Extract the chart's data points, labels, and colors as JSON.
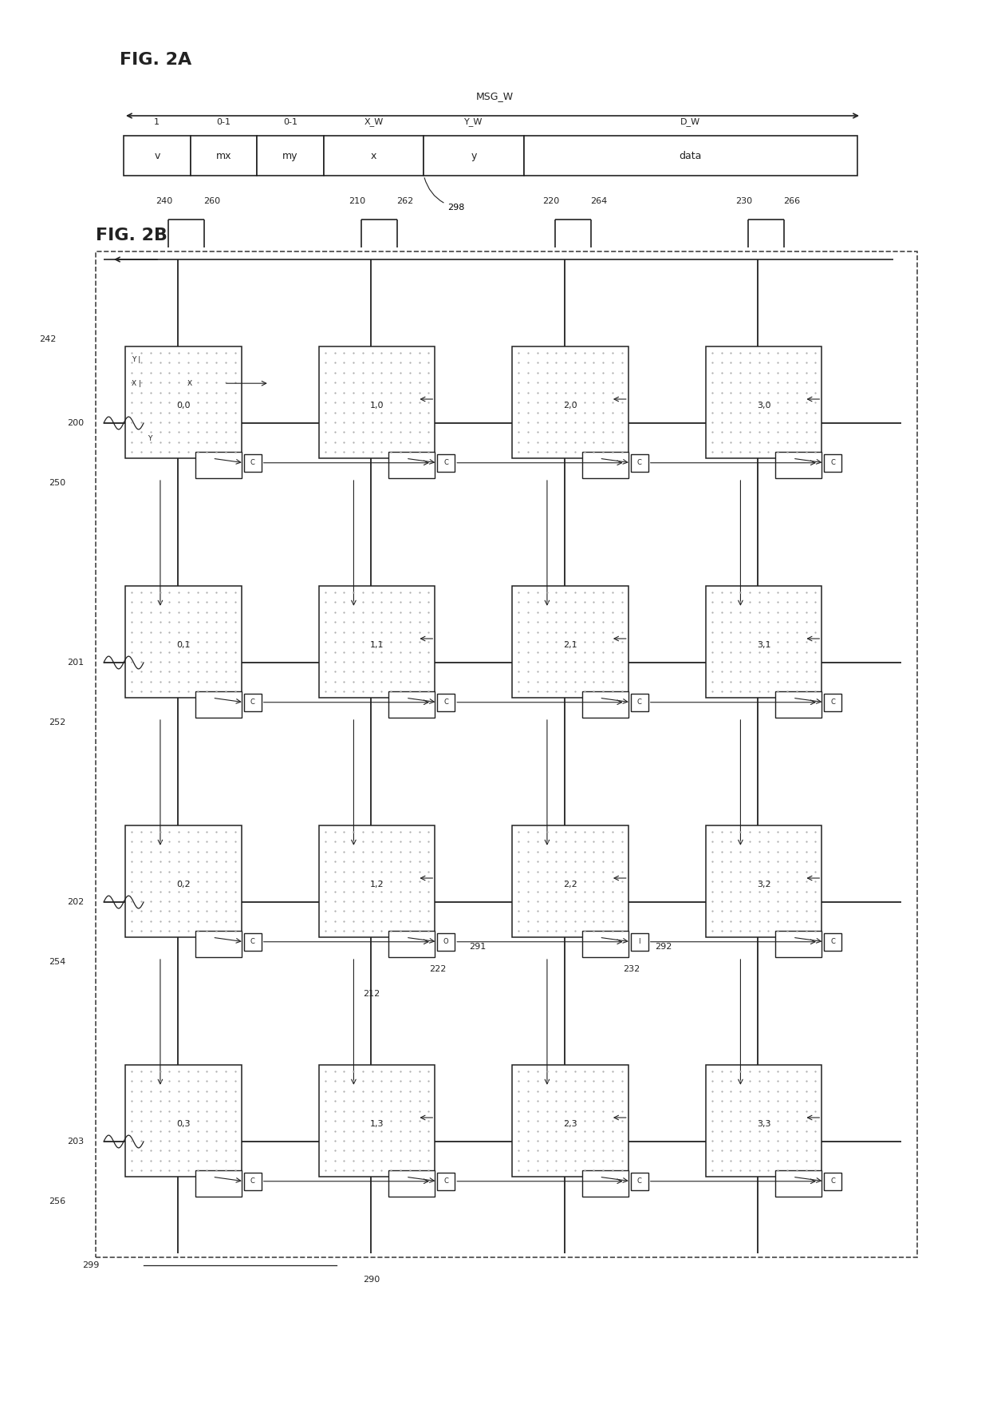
{
  "fig2a_title": "FIG. 2A",
  "fig2b_title": "FIG. 2B",
  "msg_w_label": "MSG_W",
  "fields": [
    "v",
    "mx",
    "my",
    "x",
    "y",
    "data"
  ],
  "field_widths": [
    1,
    1,
    1,
    1.5,
    1.5,
    5
  ],
  "field_labels_top": [
    "1",
    "0-1",
    "0-1",
    "X_W",
    "Y_W",
    "D_W"
  ],
  "ref_298": "298",
  "grid_labels": [
    "0,0",
    "1,0",
    "2,0",
    "3,0",
    "0,1",
    "1,1",
    "2,1",
    "3,1",
    "0,2",
    "1,2",
    "2,2",
    "3,2",
    "0,3",
    "1,3",
    "2,3",
    "3,3"
  ],
  "row_labels": [
    "200",
    "201",
    "202",
    "203"
  ],
  "col_bus_labels": [
    "240",
    "260",
    "210",
    "262",
    "220",
    "264",
    "230",
    "266"
  ],
  "side_labels": [
    "242",
    "250",
    "252",
    "254",
    "256"
  ],
  "corner_label": "299",
  "bottom_label": "290",
  "label_212": "212",
  "label_222": "222",
  "label_232": "232",
  "label_291": "291",
  "label_292": "292",
  "bg_color": "#ffffff",
  "box_fill": "#e8e8e8",
  "box_border": "#222222",
  "dot_color": "#888888",
  "line_color": "#222222",
  "font_color": "#222222"
}
